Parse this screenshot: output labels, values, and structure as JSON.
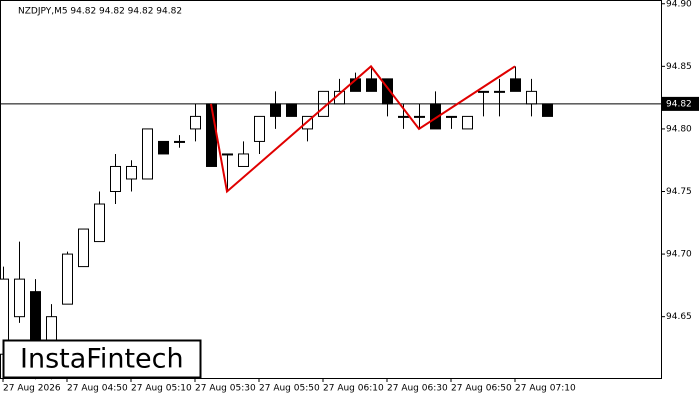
{
  "chart_data": {
    "type": "candlestick",
    "title": "NZDJPY,M5  94.82 94.82 94.82 94.82",
    "categories": [
      "27 Aug 2026",
      null,
      null,
      null,
      "27 Aug 04:50",
      null,
      null,
      null,
      "27 Aug 05:10",
      null,
      null,
      null,
      "27 Aug 05:30",
      null,
      null,
      null,
      "27 Aug 05:50",
      null,
      null,
      null,
      "27 Aug 06:10",
      null,
      null,
      null,
      "27 Aug 06:30",
      null,
      null,
      null,
      "27 Aug 06:50",
      null,
      null,
      null,
      "27 Aug 07:10",
      null,
      null
    ],
    "open": [
      94.62,
      94.65,
      94.67,
      94.625,
      94.66,
      94.69,
      94.71,
      94.75,
      94.76,
      94.76,
      94.79,
      94.79,
      94.8,
      94.82,
      94.78,
      94.77,
      94.79,
      94.82,
      94.82,
      94.8,
      94.81,
      94.82,
      94.84,
      94.84,
      94.84,
      94.81,
      94.81,
      94.82,
      94.81,
      94.8,
      94.83,
      94.83,
      94.84,
      94.82,
      94.82
    ],
    "high": [
      94.69,
      94.71,
      94.68,
      94.66,
      94.702,
      94.72,
      94.75,
      94.78,
      94.775,
      94.8,
      94.79,
      94.795,
      94.82,
      94.82,
      94.78,
      94.79,
      94.81,
      94.83,
      94.82,
      94.81,
      94.83,
      94.84,
      94.845,
      94.85,
      94.84,
      94.82,
      94.82,
      94.83,
      94.81,
      94.81,
      94.83,
      94.84,
      94.85,
      94.84,
      94.82
    ],
    "low": [
      94.6,
      94.645,
      94.6,
      94.6,
      94.66,
      94.69,
      94.71,
      94.74,
      94.75,
      94.76,
      94.78,
      94.785,
      94.79,
      94.77,
      94.75,
      94.77,
      94.78,
      94.8,
      94.81,
      94.79,
      94.81,
      94.82,
      94.83,
      94.83,
      94.81,
      94.8,
      94.8,
      94.8,
      94.8,
      94.8,
      94.81,
      94.81,
      94.83,
      94.81,
      94.81
    ],
    "close": [
      94.68,
      94.68,
      94.625,
      94.65,
      94.7,
      94.72,
      94.74,
      94.77,
      94.77,
      94.8,
      94.78,
      94.79,
      94.81,
      94.77,
      94.78,
      94.78,
      94.81,
      94.81,
      94.81,
      94.81,
      94.83,
      94.83,
      94.83,
      94.83,
      94.82,
      94.81,
      94.81,
      94.8,
      94.81,
      94.81,
      94.83,
      94.83,
      94.83,
      94.83,
      94.81
    ],
    "ylim": [
      94.601,
      94.903
    ],
    "yticks": [
      94.65,
      {
        "value": 94.7,
        "label": "94.70"
      },
      94.75,
      {
        "value": 94.8,
        "label": "94.80"
      },
      94.85,
      {
        "value": 94.9,
        "label": "94.90"
      }
    ],
    "last_price": 94.82,
    "pattern": {
      "color": "#e00000",
      "points": [
        {
          "index": 13,
          "price": 94.82
        },
        {
          "index": 14,
          "price": 94.75
        },
        {
          "index": 23,
          "price": 94.85
        },
        {
          "index": 26,
          "price": 94.8
        },
        {
          "index": 32,
          "price": 94.85
        }
      ]
    },
    "logo": "InstaFintech"
  }
}
